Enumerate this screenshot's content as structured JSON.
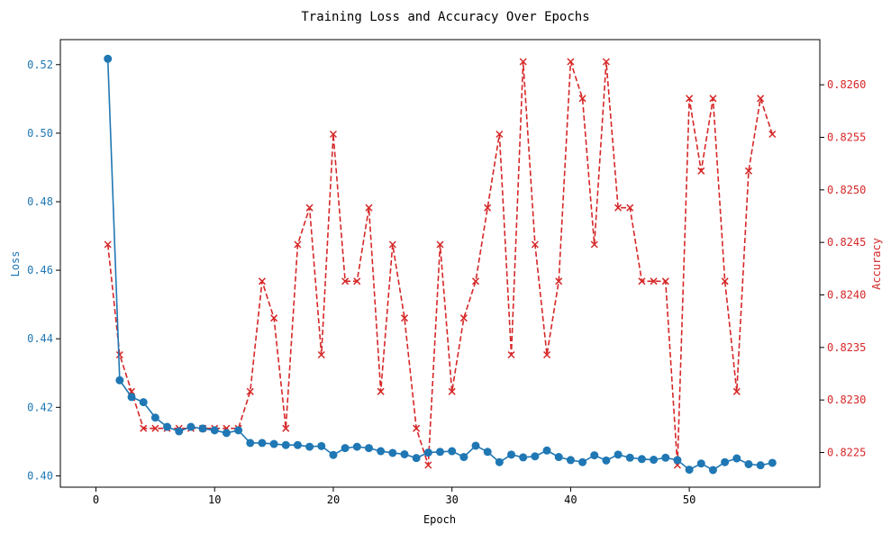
{
  "chart_data": {
    "type": "line",
    "title": "Training Loss and Accuracy Over Epochs",
    "xlabel": "Epoch",
    "ylabel_left": "Loss",
    "ylabel_right": "Accuracy",
    "xlim": [
      -3,
      61
    ],
    "ylim_left": [
      0.3967,
      0.5273
    ],
    "ylim_right": [
      0.82217,
      0.82643
    ],
    "x_ticks": [
      "0",
      "10",
      "20",
      "30",
      "40",
      "50"
    ],
    "left_ticks": [
      "0.40",
      "0.42",
      "0.44",
      "0.46",
      "0.48",
      "0.50",
      "0.52"
    ],
    "right_ticks": [
      "0.8225",
      "0.8230",
      "0.8235",
      "0.8240",
      "0.8245",
      "0.8250",
      "0.8255",
      "0.8260"
    ],
    "grid": false,
    "x": [
      1,
      2,
      3,
      4,
      5,
      6,
      7,
      8,
      9,
      10,
      11,
      12,
      13,
      14,
      15,
      16,
      17,
      18,
      19,
      20,
      21,
      22,
      23,
      24,
      25,
      26,
      27,
      28,
      29,
      30,
      31,
      32,
      33,
      34,
      35,
      36,
      37,
      38,
      39,
      40,
      41,
      42,
      43,
      44,
      45,
      46,
      47,
      48,
      49,
      50,
      51,
      52,
      53,
      54,
      55,
      56,
      57
    ],
    "series": [
      {
        "axis": "left",
        "color": "#1f77b4",
        "style": "solid",
        "marker": "circle",
        "values": [
          0.5217,
          0.4279,
          0.423,
          0.4215,
          0.417,
          0.4143,
          0.413,
          0.4143,
          0.4138,
          0.4133,
          0.4125,
          0.4133,
          0.4096,
          0.4096,
          0.4093,
          0.409,
          0.409,
          0.4085,
          0.4087,
          0.4061,
          0.4081,
          0.4085,
          0.4081,
          0.4072,
          0.4067,
          0.4063,
          0.4052,
          0.4068,
          0.407,
          0.4072,
          0.4055,
          0.4088,
          0.407,
          0.404,
          0.4062,
          0.4054,
          0.4057,
          0.4074,
          0.4055,
          0.4046,
          0.404,
          0.406,
          0.4045,
          0.4062,
          0.4053,
          0.4049,
          0.4047,
          0.4053,
          0.4046,
          0.4018,
          0.4036,
          0.4017,
          0.404,
          0.4051,
          0.4034,
          0.4031,
          0.4038
        ]
      },
      {
        "axis": "right",
        "color": "#d62728",
        "style": "dashed",
        "marker": "x",
        "values": [
          0.82448,
          0.82343,
          0.82308,
          0.82273,
          0.82273,
          0.82273,
          0.82273,
          0.82273,
          0.82273,
          0.82273,
          0.82273,
          0.82273,
          0.82308,
          0.82413,
          0.82378,
          0.82273,
          0.82448,
          0.82483,
          0.82343,
          0.82553,
          0.82413,
          0.82413,
          0.82483,
          0.82308,
          0.82448,
          0.82378,
          0.82273,
          0.82238,
          0.82448,
          0.82308,
          0.82378,
          0.82413,
          0.82483,
          0.82553,
          0.82343,
          0.82622,
          0.82448,
          0.82343,
          0.82413,
          0.82622,
          0.82587,
          0.82448,
          0.82622,
          0.82483,
          0.82483,
          0.82413,
          0.82413,
          0.82413,
          0.82238,
          0.82587,
          0.82518,
          0.82587,
          0.82413,
          0.82308,
          0.82518,
          0.82587,
          0.82553
        ]
      }
    ]
  }
}
